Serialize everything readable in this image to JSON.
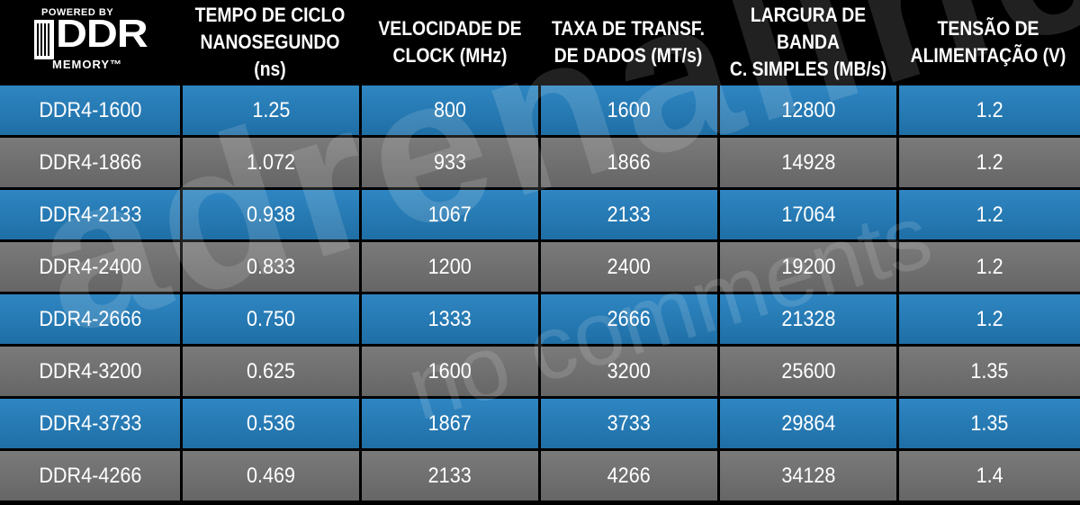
{
  "logo": {
    "powered": "POWERED BY",
    "ddr": "DDR",
    "memory": "MEMORY™"
  },
  "headers": [
    "",
    "TEMPO DE CICLO\nNANOSEGUNDO (ns)",
    "VELOCIDADE DE\nCLOCK (MHz)",
    "TAXA DE TRANSF.\nDE DADOS (MT/s)",
    "LARGURA DE BANDA\nC. SIMPLES (MB/s)",
    "TENSÃO DE\nALIMENTAÇÃO (V)"
  ],
  "rows": [
    [
      "DDR4-1600",
      "1.25",
      "800",
      "1600",
      "12800",
      "1.2"
    ],
    [
      "DDR4-1866",
      "1.072",
      "933",
      "1866",
      "14928",
      "1.2"
    ],
    [
      "DDR4-2133",
      "0.938",
      "1067",
      "2133",
      "17064",
      "1.2"
    ],
    [
      "DDR4-2400",
      "0.833",
      "1200",
      "2400",
      "19200",
      "1.2"
    ],
    [
      "DDR4-2666",
      "0.750",
      "1333",
      "2666",
      "21328",
      "1.2"
    ],
    [
      "DDR4-3200",
      "0.625",
      "1600",
      "3200",
      "25600",
      "1.35"
    ],
    [
      "DDR4-3733",
      "0.536",
      "1867",
      "3733",
      "29864",
      "1.35"
    ],
    [
      "DDR4-4266",
      "0.469",
      "2133",
      "4266",
      "34128",
      "1.4"
    ]
  ],
  "watermark": {
    "main": "adrenaline",
    "sub": "no comments"
  },
  "colors": {
    "row_blue": "#2a7fb9",
    "row_gray": "#707070",
    "background": "#000000",
    "text": "#ffffff"
  }
}
